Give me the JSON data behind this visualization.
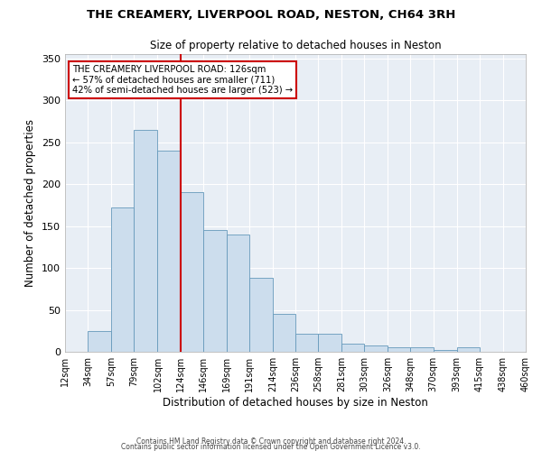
{
  "title_line1": "THE CREAMERY, LIVERPOOL ROAD, NESTON, CH64 3RH",
  "title_line2": "Size of property relative to detached houses in Neston",
  "xlabel": "Distribution of detached houses by size in Neston",
  "ylabel": "Number of detached properties",
  "bar_color": "#ccdded",
  "bar_edge_color": "#6699bb",
  "vline_color": "#cc0000",
  "vline_x": 124,
  "bin_edges": [
    12,
    34,
    57,
    79,
    102,
    124,
    146,
    169,
    191,
    214,
    236,
    258,
    281,
    303,
    326,
    348,
    370,
    393,
    415,
    438,
    460
  ],
  "bin_labels": [
    "12sqm",
    "34sqm",
    "57sqm",
    "79sqm",
    "102sqm",
    "124sqm",
    "146sqm",
    "169sqm",
    "191sqm",
    "214sqm",
    "236sqm",
    "258sqm",
    "281sqm",
    "303sqm",
    "326sqm",
    "348sqm",
    "370sqm",
    "393sqm",
    "415sqm",
    "438sqm",
    "460sqm"
  ],
  "bar_heights": [
    0,
    25,
    172,
    265,
    240,
    190,
    145,
    140,
    88,
    45,
    22,
    22,
    10,
    8,
    5,
    5,
    2,
    5,
    0,
    0
  ],
  "ylim": [
    0,
    355
  ],
  "yticks": [
    0,
    50,
    100,
    150,
    200,
    250,
    300,
    350
  ],
  "annotation_title": "THE CREAMERY LIVERPOOL ROAD: 126sqm",
  "annotation_line2": "← 57% of detached houses are smaller (711)",
  "annotation_line3": "42% of semi-detached houses are larger (523) →",
  "footer_line1": "Contains HM Land Registry data © Crown copyright and database right 2024.",
  "footer_line2": "Contains public sector information licensed under the Open Government Licence v3.0.",
  "background_color": "#e8eef5"
}
